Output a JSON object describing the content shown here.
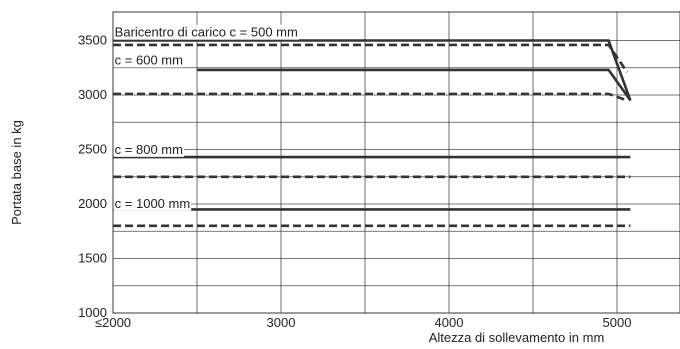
{
  "chart_data": {
    "type": "line",
    "xlabel": "Altezza di sollevamento in mm",
    "ylabel": "Portata base in kg",
    "xlim": [
      2000,
      5500
    ],
    "ylim": [
      1000,
      3750
    ],
    "x_ticks": [
      2000,
      3000,
      4000,
      5000
    ],
    "x_tick_labels": [
      "≤2000",
      "3000",
      "4000",
      "5000"
    ],
    "y_ticks": [
      1000,
      1500,
      2000,
      2500,
      3000,
      3500
    ],
    "y_tick_labels": [
      "1000",
      "1500",
      "2000",
      "2500",
      "3000",
      "3500"
    ],
    "grid": true,
    "colors": {
      "line": "#333333",
      "grid": "#4a4a4a",
      "text": "#222222"
    },
    "annotations": [
      {
        "text": "Baricentro di carico c = 500 mm",
        "x": 2010,
        "y": 3535
      },
      {
        "text": "c = 600 mm",
        "x": 2010,
        "y": 3280
      },
      {
        "text": "c = 800 mm",
        "x": 2010,
        "y": 2460
      },
      {
        "text": "c = 1000 mm",
        "x": 2010,
        "y": 1965
      }
    ],
    "series": [
      {
        "style": "solid",
        "x": [
          2000,
          4950,
          5080
        ],
        "y": [
          3500,
          3500,
          2950
        ]
      },
      {
        "style": "dashed",
        "x": [
          2000,
          4950,
          5060
        ],
        "y": [
          3460,
          3460,
          3210
        ]
      },
      {
        "style": "solid",
        "x": [
          2500,
          4950,
          5080
        ],
        "y": [
          3230,
          3230,
          2950
        ]
      },
      {
        "style": "dashed",
        "x": [
          2000,
          4950,
          5060
        ],
        "y": [
          3010,
          3010,
          2950
        ]
      },
      {
        "style": "solid",
        "x": [
          2000,
          5080
        ],
        "y": [
          2430,
          2430
        ]
      },
      {
        "style": "dashed",
        "x": [
          2000,
          5080
        ],
        "y": [
          2250,
          2250
        ]
      },
      {
        "style": "solid",
        "x": [
          2000,
          5080
        ],
        "y": [
          1950,
          1950
        ]
      },
      {
        "style": "dashed",
        "x": [
          2000,
          5080
        ],
        "y": [
          1800,
          1800
        ]
      }
    ]
  }
}
